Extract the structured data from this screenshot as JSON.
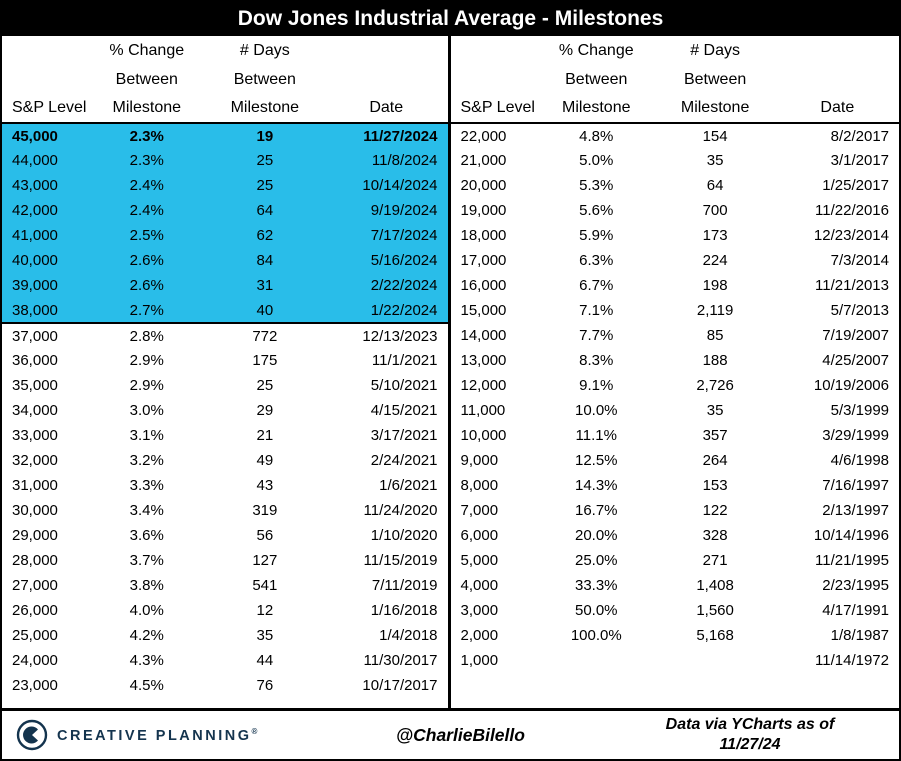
{
  "title": "Dow Jones Industrial Average - Milestones",
  "highlight_color": "#29bde9",
  "columns": {
    "level": "S&P Level",
    "pct_line1": "% Change",
    "pct_line2": "Between",
    "pct_line3": "Milestone",
    "days_line1": "# Days",
    "days_line2": "Between",
    "days_line3": "Milestone",
    "date": "Date"
  },
  "chart_data": [
    {
      "type": "table",
      "name": "left",
      "columns": [
        "S&P Level",
        "% Change Between Milestone",
        "# Days Between Milestone",
        "Date"
      ],
      "highlighted_row_count": 8,
      "emphasized_rows": [
        0
      ],
      "rows": [
        [
          "45,000",
          "2.3%",
          "19",
          "11/27/2024"
        ],
        [
          "44,000",
          "2.3%",
          "25",
          "11/8/2024"
        ],
        [
          "43,000",
          "2.4%",
          "25",
          "10/14/2024"
        ],
        [
          "42,000",
          "2.4%",
          "64",
          "9/19/2024"
        ],
        [
          "41,000",
          "2.5%",
          "62",
          "7/17/2024"
        ],
        [
          "40,000",
          "2.6%",
          "84",
          "5/16/2024"
        ],
        [
          "39,000",
          "2.6%",
          "31",
          "2/22/2024"
        ],
        [
          "38,000",
          "2.7%",
          "40",
          "1/22/2024"
        ],
        [
          "37,000",
          "2.8%",
          "772",
          "12/13/2023"
        ],
        [
          "36,000",
          "2.9%",
          "175",
          "11/1/2021"
        ],
        [
          "35,000",
          "2.9%",
          "25",
          "5/10/2021"
        ],
        [
          "34,000",
          "3.0%",
          "29",
          "4/15/2021"
        ],
        [
          "33,000",
          "3.1%",
          "21",
          "3/17/2021"
        ],
        [
          "32,000",
          "3.2%",
          "49",
          "2/24/2021"
        ],
        [
          "31,000",
          "3.3%",
          "43",
          "1/6/2021"
        ],
        [
          "30,000",
          "3.4%",
          "319",
          "11/24/2020"
        ],
        [
          "29,000",
          "3.6%",
          "56",
          "1/10/2020"
        ],
        [
          "28,000",
          "3.7%",
          "127",
          "11/15/2019"
        ],
        [
          "27,000",
          "3.8%",
          "541",
          "7/11/2019"
        ],
        [
          "26,000",
          "4.0%",
          "12",
          "1/16/2018"
        ],
        [
          "25,000",
          "4.2%",
          "35",
          "1/4/2018"
        ],
        [
          "24,000",
          "4.3%",
          "44",
          "11/30/2017"
        ],
        [
          "23,000",
          "4.5%",
          "76",
          "10/17/2017"
        ]
      ]
    },
    {
      "type": "table",
      "name": "right",
      "columns": [
        "S&P Level",
        "% Change Between Milestone",
        "# Days Between Milestone",
        "Date"
      ],
      "highlighted_row_count": 0,
      "emphasized_rows": [],
      "rows": [
        [
          "22,000",
          "4.8%",
          "154",
          "8/2/2017"
        ],
        [
          "21,000",
          "5.0%",
          "35",
          "3/1/2017"
        ],
        [
          "20,000",
          "5.3%",
          "64",
          "1/25/2017"
        ],
        [
          "19,000",
          "5.6%",
          "700",
          "11/22/2016"
        ],
        [
          "18,000",
          "5.9%",
          "173",
          "12/23/2014"
        ],
        [
          "17,000",
          "6.3%",
          "224",
          "7/3/2014"
        ],
        [
          "16,000",
          "6.7%",
          "198",
          "11/21/2013"
        ],
        [
          "15,000",
          "7.1%",
          "2,119",
          "5/7/2013"
        ],
        [
          "14,000",
          "7.7%",
          "85",
          "7/19/2007"
        ],
        [
          "13,000",
          "8.3%",
          "188",
          "4/25/2007"
        ],
        [
          "12,000",
          "9.1%",
          "2,726",
          "10/19/2006"
        ],
        [
          "11,000",
          "10.0%",
          "35",
          "5/3/1999"
        ],
        [
          "10,000",
          "11.1%",
          "357",
          "3/29/1999"
        ],
        [
          "9,000",
          "12.5%",
          "264",
          "4/6/1998"
        ],
        [
          "8,000",
          "14.3%",
          "153",
          "7/16/1997"
        ],
        [
          "7,000",
          "16.7%",
          "122",
          "2/13/1997"
        ],
        [
          "6,000",
          "20.0%",
          "328",
          "10/14/1996"
        ],
        [
          "5,000",
          "25.0%",
          "271",
          "11/21/1995"
        ],
        [
          "4,000",
          "33.3%",
          "1,408",
          "2/23/1995"
        ],
        [
          "3,000",
          "50.0%",
          "1,560",
          "4/17/1991"
        ],
        [
          "2,000",
          "100.0%",
          "5,168",
          "1/8/1987"
        ],
        [
          "1,000",
          "",
          "",
          "11/14/1972"
        ]
      ]
    }
  ],
  "footer": {
    "brand": "CREATIVE PLANNING",
    "brand_reg": "®",
    "logo_icon": "creative-planning-logo-icon",
    "handle": "@CharlieBilello",
    "source_line1": "Data via YCharts as of",
    "source_line2": "11/27/24"
  }
}
